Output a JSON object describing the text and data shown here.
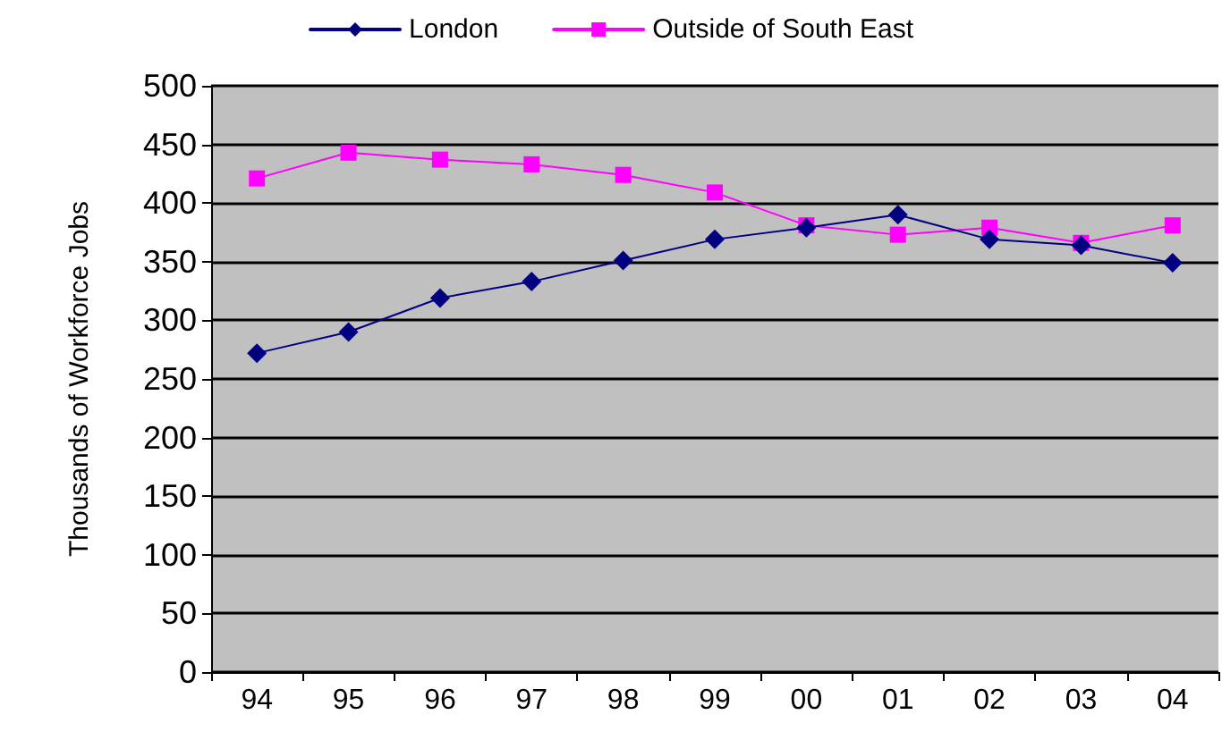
{
  "chart_data": {
    "type": "line",
    "ylabel": "Thousands of Workforce Jobs",
    "categories": [
      "94",
      "95",
      "96",
      "97",
      "98",
      "99",
      "00",
      "01",
      "02",
      "03",
      "04"
    ],
    "series": [
      {
        "name": "London",
        "color": "#000080",
        "marker": "diamond",
        "values": [
          272,
          290,
          319,
          333,
          351,
          369,
          379,
          390,
          369,
          364,
          349
        ]
      },
      {
        "name": "Outside of South East",
        "color": "#ff00ff",
        "marker": "square",
        "values": [
          421,
          443,
          437,
          433,
          424,
          409,
          381,
          373,
          379,
          366,
          381
        ]
      }
    ],
    "ylim": [
      0,
      500
    ],
    "yticks": [
      0,
      50,
      100,
      150,
      200,
      250,
      300,
      350,
      400,
      450,
      500
    ],
    "grid": "y",
    "legend": "top",
    "line_style": "solid"
  }
}
